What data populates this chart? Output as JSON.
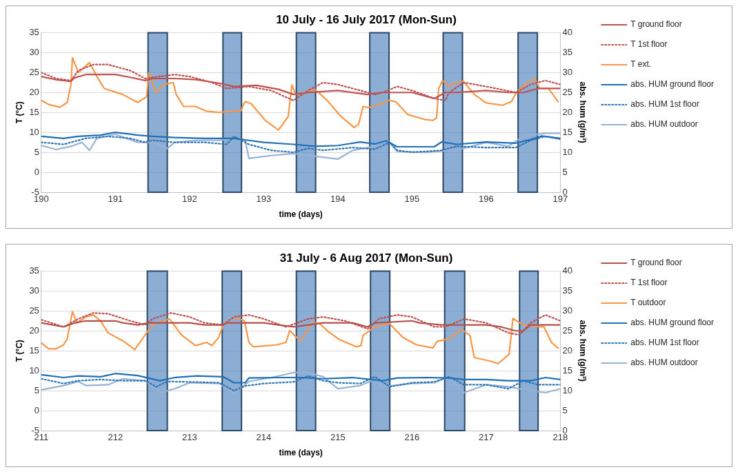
{
  "chart_data": [
    {
      "type": "line",
      "title": "10 July - 16 July 2017 (Mon-Sun)",
      "xlabel": "time (days)",
      "ylabel": "T (°C)",
      "y2label": "abs. hum (g/m³)",
      "xlim": [
        190,
        197
      ],
      "xticks": [
        190,
        191,
        192,
        193,
        194,
        195,
        196,
        197
      ],
      "ylim": [
        -5,
        35
      ],
      "yticks": [
        -5,
        0,
        5,
        10,
        15,
        20,
        25,
        30,
        35
      ],
      "y2lim": [
        0,
        40
      ],
      "y2ticks": [
        0,
        5,
        10,
        15,
        20,
        25,
        30,
        35,
        40
      ],
      "grid": "y",
      "legend": "right",
      "bands": [
        {
          "axis": "x",
          "from": 191.44,
          "to": 191.7,
          "color": "#4f81bd"
        },
        {
          "axis": "x",
          "from": 192.45,
          "to": 192.7,
          "color": "#4f81bd"
        },
        {
          "axis": "x",
          "from": 193.44,
          "to": 193.7,
          "color": "#4f81bd"
        },
        {
          "axis": "x",
          "from": 194.43,
          "to": 194.69,
          "color": "#4f81bd"
        },
        {
          "axis": "x",
          "from": 195.42,
          "to": 195.68,
          "color": "#4f81bd"
        },
        {
          "axis": "x",
          "from": 196.43,
          "to": 196.69,
          "color": "#4f81bd"
        }
      ],
      "series": [
        {
          "name": "T ground floor",
          "color": "#c0504d",
          "line_style": "solid",
          "x": [
            190,
            190.2,
            190.4,
            190.45,
            190.6,
            191,
            191.2,
            191.4,
            191.5,
            191.8,
            192.1,
            192.4,
            192.6,
            192.9,
            193.2,
            193.4,
            193.6,
            194,
            194.4,
            194.6,
            195,
            195.3,
            195.45,
            195.6,
            196,
            196.3,
            196.5,
            196.7,
            197
          ],
          "values": [
            24,
            23.2,
            22.8,
            23.7,
            24.5,
            24.5,
            23.8,
            23,
            23.5,
            23.5,
            23.2,
            22.3,
            21.5,
            21.8,
            20.8,
            19.5,
            20,
            20.5,
            19.5,
            20,
            20,
            18.5,
            20,
            20,
            20.5,
            20,
            20,
            21,
            21
          ]
        },
        {
          "name": "T 1st floor",
          "color": "#c0504d",
          "line_style": "dotted",
          "x": [
            190,
            190.2,
            190.4,
            190.5,
            190.7,
            190.9,
            191.2,
            191.4,
            191.6,
            191.8,
            192,
            192.3,
            192.5,
            192.8,
            193.1,
            193.4,
            193.6,
            193.8,
            194,
            194.3,
            194.5,
            194.6,
            194.8,
            195,
            195.3,
            195.45,
            195.5,
            195.7,
            196,
            196.4,
            196.6,
            196.8,
            197
          ],
          "values": [
            25,
            23.5,
            23,
            25.5,
            27,
            27,
            25.5,
            23.5,
            24,
            24.5,
            24,
            22.5,
            21,
            21.5,
            20.5,
            18,
            20.5,
            22.5,
            22,
            20.5,
            19.5,
            20,
            21.5,
            20.5,
            18.5,
            18,
            20,
            22.5,
            21.5,
            20,
            22,
            23,
            22
          ]
        },
        {
          "name": "T ext.",
          "color": "#f79646",
          "line_style": "solid",
          "x": [
            190,
            190.1,
            190.25,
            190.35,
            190.4,
            190.42,
            190.5,
            190.65,
            190.75,
            190.85,
            191.1,
            191.3,
            191.42,
            191.45,
            191.55,
            191.65,
            191.78,
            191.82,
            191.92,
            192.08,
            192.23,
            192.39,
            192.58,
            192.7,
            192.72,
            192.75,
            192.83,
            193.02,
            193.2,
            193.33,
            193.38,
            193.43,
            193.55,
            193.69,
            193.75,
            193.87,
            194.03,
            194.22,
            194.28,
            194.34,
            194.41,
            194.55,
            194.69,
            194.78,
            194.94,
            195.16,
            195.28,
            195.33,
            195.36,
            195.41,
            195.5,
            195.59,
            195.69,
            195.84,
            196,
            196.22,
            196.34,
            196.41,
            196.55,
            196.66,
            196.72,
            196.84,
            196.97
          ],
          "values": [
            18,
            17,
            16.3,
            17.5,
            22,
            28.7,
            25,
            27.5,
            24,
            21,
            19.5,
            17.5,
            18.9,
            24.9,
            20,
            22,
            22.5,
            19.5,
            16.5,
            16.5,
            15.3,
            15,
            15.3,
            15.5,
            16.8,
            17.7,
            17.2,
            13,
            10.6,
            14,
            21.9,
            19.5,
            20,
            20.7,
            19.8,
            17.7,
            14.2,
            11.2,
            12.1,
            16.5,
            16.2,
            17,
            18,
            17.7,
            14.5,
            13.3,
            13,
            13.6,
            21,
            23,
            21.5,
            22.5,
            22.8,
            19.5,
            17.4,
            16.8,
            17.7,
            20.1,
            22.5,
            23.4,
            21,
            21,
            17.7
          ]
        },
        {
          "name": "abs. HUM ground floor",
          "color": "#1f6fb5",
          "line_style": "solid",
          "axis": "y2",
          "x": [
            190,
            190.3,
            190.5,
            190.8,
            191,
            191.3,
            191.5,
            191.8,
            192.2,
            192.6,
            192.8,
            193,
            193.4,
            193.7,
            194,
            194.3,
            194.5,
            194.65,
            194.8,
            195.3,
            195.4,
            195.6,
            196,
            196.4,
            196.6,
            196.75,
            197
          ],
          "values": [
            14,
            13.5,
            14,
            14.3,
            15,
            14.3,
            14,
            13.7,
            13.5,
            13.5,
            13,
            12.5,
            12,
            11.5,
            11.7,
            12.6,
            12.1,
            12.9,
            11.4,
            11.4,
            12.6,
            12,
            12.6,
            12.3,
            13.2,
            14.1,
            13.5
          ]
        },
        {
          "name": "abs. HUM 1st floor",
          "color": "#2e75b6",
          "line_style": "dotted",
          "axis": "y2",
          "x": [
            190,
            190.3,
            190.6,
            190.9,
            191.2,
            191.4,
            191.5,
            191.8,
            192.2,
            192.5,
            192.6,
            192.8,
            193.1,
            193.4,
            193.6,
            193.8,
            194.2,
            194.5,
            194.7,
            194.8,
            195,
            195.4,
            195.6,
            196,
            196.4,
            196.6,
            196.8,
            197
          ],
          "values": [
            12.5,
            12,
            13.5,
            14,
            13.5,
            12.5,
            13,
            12.5,
            12.5,
            12,
            14,
            12,
            10.5,
            10,
            11,
            10.5,
            11.2,
            10.8,
            12.5,
            10.5,
            10,
            10.5,
            11.5,
            11.2,
            11.2,
            13,
            14,
            13.3
          ]
        },
        {
          "name": "abs. HUM outdoor",
          "color": "#95b3d7",
          "line_style": "solid",
          "axis": "y2",
          "x": [
            190,
            190.2,
            190.4,
            190.55,
            190.65,
            190.75,
            191,
            191.3,
            191.5,
            191.7,
            191.8,
            192.1,
            192.4,
            192.6,
            192.75,
            192.8,
            193.1,
            193.4,
            193.7,
            194,
            194.2,
            194.5,
            194.65,
            194.8,
            195.2,
            195.5,
            195.7,
            196,
            196.3,
            196.5,
            196.8,
            197
          ],
          "values": [
            11.7,
            10.7,
            11.5,
            12.5,
            10.5,
            13.5,
            14.5,
            12.5,
            12.5,
            11,
            12.5,
            13,
            13,
            13.5,
            13,
            8.5,
            9.2,
            9.7,
            9,
            8.3,
            10.5,
            11.5,
            13.5,
            10.2,
            10,
            10.5,
            11,
            12.5,
            11.5,
            14,
            14.8,
            14.8
          ]
        }
      ]
    },
    {
      "type": "line",
      "title": "31 July - 6 Aug 2017 (Mon-Sun)",
      "xlabel": "time (days)",
      "ylabel": "T (°C)",
      "y2label": "abs. hum (g/m³)",
      "xlim": [
        211,
        218
      ],
      "xticks": [
        211,
        212,
        213,
        214,
        215,
        216,
        217,
        218
      ],
      "ylim": [
        -5,
        35
      ],
      "yticks": [
        -5,
        0,
        5,
        10,
        15,
        20,
        25,
        30,
        35
      ],
      "y2lim": [
        0,
        40
      ],
      "y2ticks": [
        0,
        5,
        10,
        15,
        20,
        25,
        30,
        35,
        40
      ],
      "grid": "y",
      "legend": "right",
      "bands": [
        {
          "axis": "x",
          "from": 212.43,
          "to": 212.7,
          "color": "#4f81bd"
        },
        {
          "axis": "x",
          "from": 213.44,
          "to": 213.7,
          "color": "#4f81bd"
        },
        {
          "axis": "x",
          "from": 214.44,
          "to": 214.7,
          "color": "#4f81bd"
        },
        {
          "axis": "x",
          "from": 215.44,
          "to": 215.7,
          "color": "#4f81bd"
        },
        {
          "axis": "x",
          "from": 216.44,
          "to": 216.71,
          "color": "#4f81bd"
        },
        {
          "axis": "x",
          "from": 217.45,
          "to": 217.7,
          "color": "#4f81bd"
        }
      ],
      "series": [
        {
          "name": "T ground floor",
          "color": "#b5504b",
          "line_style": "solid",
          "x": [
            211,
            211.3,
            211.45,
            211.6,
            212,
            212.1,
            212.3,
            212.45,
            213,
            213.2,
            213.45,
            213.5,
            214,
            214.2,
            214.4,
            214.6,
            214.8,
            215.2,
            215.3,
            215.4,
            215.5,
            216,
            216.1,
            216.4,
            216.6,
            217,
            217.2,
            217.4,
            217.5,
            217.6,
            218
          ],
          "values": [
            22,
            21,
            22,
            22.5,
            22.5,
            22,
            21.5,
            22,
            22,
            21.5,
            21.5,
            22,
            22,
            21.5,
            21,
            21.5,
            22,
            22,
            21.5,
            21,
            22,
            22.5,
            22,
            21.5,
            21.5,
            21.5,
            21,
            20,
            20,
            21.5,
            21.5
          ]
        },
        {
          "name": "T 1st floor",
          "color": "#c0504d",
          "line_style": "dotted",
          "x": [
            211,
            211.3,
            211.5,
            211.7,
            211.9,
            212.2,
            212.4,
            212.5,
            212.75,
            213,
            213.2,
            213.45,
            213.6,
            213.8,
            214,
            214.3,
            214.6,
            214.8,
            215.1,
            215.4,
            215.55,
            215.8,
            216,
            216.3,
            216.45,
            216.7,
            217,
            217.3,
            217.45,
            217.6,
            217.8,
            218
          ],
          "values": [
            22.8,
            21,
            23,
            24.5,
            24.3,
            22.5,
            21.5,
            23,
            24.5,
            23.5,
            22,
            21.5,
            23.5,
            24,
            23,
            21,
            23,
            23.5,
            22.5,
            20.5,
            23,
            24,
            23.5,
            21,
            21,
            23,
            22,
            19.5,
            19,
            22,
            24,
            22.5
          ]
        },
        {
          "name": "T outdoor",
          "color": "#f79646",
          "line_style": "solid",
          "x": [
            211,
            211.1,
            211.2,
            211.3,
            211.35,
            211.42,
            211.48,
            211.6,
            211.7,
            211.8,
            211.9,
            212.1,
            212.26,
            212.42,
            212.5,
            212.73,
            212.89,
            213.08,
            213.23,
            213.3,
            213.39,
            213.45,
            213.6,
            213.74,
            213.8,
            213.86,
            214.18,
            214.3,
            214.35,
            214.43,
            214.5,
            214.65,
            214.75,
            214.87,
            215.03,
            215.19,
            215.25,
            215.31,
            215.34,
            215.5,
            215.69,
            215.88,
            216.06,
            216.28,
            216.34,
            216.5,
            216.66,
            216.78,
            216.84,
            216.91,
            217.06,
            217.16,
            217.22,
            217.31,
            217.36,
            217.5,
            217.72,
            217.78,
            217.88,
            217.97
          ],
          "values": [
            17,
            15.5,
            15.5,
            16.5,
            18,
            24.8,
            22,
            23.5,
            24,
            22.5,
            19.5,
            17.5,
            15.3,
            19.5,
            21.5,
            23,
            19,
            16.3,
            17.1,
            16.3,
            18.3,
            21.3,
            23.5,
            22.5,
            17.1,
            16,
            16.5,
            17.1,
            20.1,
            18.6,
            17.5,
            22,
            21.9,
            19.8,
            17.7,
            16.5,
            16,
            16.3,
            18.9,
            21,
            21.9,
            18.3,
            16.5,
            15.7,
            17.4,
            18,
            20.4,
            18.9,
            13.3,
            13,
            12.4,
            11.8,
            12.7,
            14.2,
            23.1,
            21.5,
            21,
            21,
            17.1,
            15.7
          ]
        },
        {
          "name": "abs. HUM ground floor",
          "color": "#1f6fb5",
          "line_style": "solid",
          "axis": "y2",
          "x": [
            211,
            211.3,
            211.5,
            211.8,
            212,
            212.3,
            212.6,
            212.8,
            213.1,
            213.45,
            213.6,
            213.75,
            213.8,
            214.2,
            214.5,
            214.8,
            215.2,
            215.4,
            215.6,
            215.8,
            216.2,
            216.5,
            216.7,
            217,
            217.3,
            217.6,
            217.8,
            218
          ],
          "values": [
            14,
            13.3,
            13.7,
            13.5,
            14.3,
            13.8,
            12.5,
            13.3,
            13.7,
            13.5,
            12,
            12,
            13.2,
            13.3,
            13.3,
            13,
            13.3,
            12.9,
            12.5,
            13.2,
            13.3,
            13.2,
            12.8,
            12.8,
            12.5,
            12.5,
            13.3,
            12.8
          ]
        },
        {
          "name": "abs. HUM 1st floor",
          "color": "#2e75b6",
          "line_style": "dotted",
          "axis": "y2",
          "x": [
            211,
            211.3,
            211.5,
            211.8,
            212.1,
            212.4,
            212.55,
            212.7,
            213,
            213.4,
            213.6,
            213.75,
            214,
            214.4,
            214.6,
            214.8,
            215,
            215.3,
            215.5,
            215.7,
            216,
            216.3,
            216.5,
            216.7,
            217,
            217.3,
            217.5,
            217.7,
            218
          ],
          "values": [
            13,
            11.8,
            12.5,
            12.8,
            12.5,
            12.5,
            11,
            12.3,
            12.2,
            12,
            10,
            11.2,
            11.8,
            12.2,
            13.7,
            12.5,
            12,
            11.8,
            13.5,
            11,
            12,
            12.2,
            13.5,
            11.5,
            11.5,
            10.5,
            12.5,
            11.5,
            11.5
          ]
        },
        {
          "name": "abs. HUM outdoor",
          "color": "#95b3d7",
          "line_style": "solid",
          "axis": "y2",
          "x": [
            211,
            211.3,
            211.5,
            211.6,
            211.9,
            212.1,
            212.4,
            212.6,
            212.8,
            213,
            213.4,
            213.6,
            213.8,
            214.1,
            214.4,
            214.55,
            214.8,
            215,
            215.3,
            215.5,
            215.6,
            216,
            216.3,
            216.5,
            216.7,
            217,
            217.3,
            217.6,
            217.8,
            218
          ],
          "values": [
            10.2,
            11.3,
            12.3,
            11.3,
            11.5,
            13,
            12.5,
            9.5,
            10.5,
            12,
            11.8,
            9.3,
            12.3,
            13.3,
            14.5,
            14.8,
            13.5,
            10.5,
            11.3,
            12.8,
            11,
            11.8,
            12,
            13.5,
            9.5,
            11.5,
            11,
            10,
            9.5,
            10.5
          ]
        }
      ]
    }
  ]
}
